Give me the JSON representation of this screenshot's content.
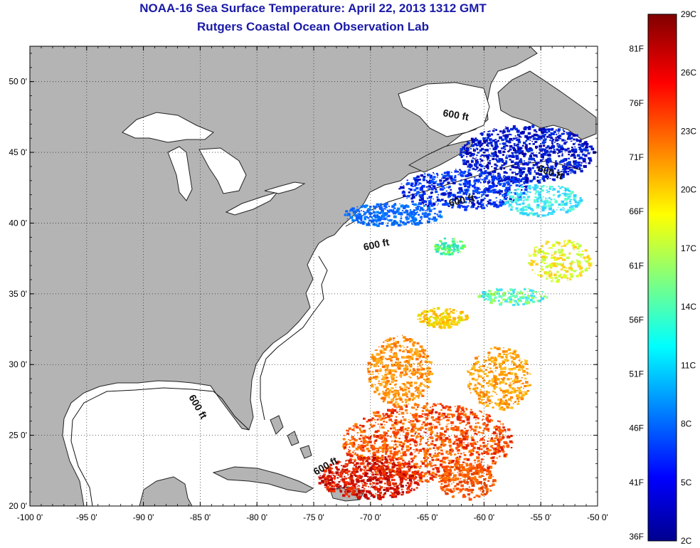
{
  "header": {
    "title": "NOAA-16 Sea Surface Temperature:  April 22, 2013 1312 GMT",
    "subtitle": "Rutgers Coastal Ocean Observation Lab"
  },
  "map": {
    "lon_range": [
      -100,
      -50
    ],
    "lat_range": [
      20,
      52.5
    ],
    "lon_ticks": [
      "-100 0'",
      "-95 0'",
      "-90 0'",
      "-85 0'",
      "-80 0'",
      "-75 0'",
      "-70 0'",
      "-65 0'",
      "-60 0'",
      "-55 0'",
      "-50 0'"
    ],
    "lat_ticks": [
      "20 0'",
      "25 0'",
      "30 0'",
      "35 0'",
      "40 0'",
      "45 0'",
      "50 0'"
    ],
    "land_color": "#b4b4b4",
    "ocean_color": "#ffffff",
    "gridlines": true,
    "contour_labels": [
      "600 ft",
      "600 ft",
      "600 ft",
      "600 ft",
      "600 ft",
      "600 ft"
    ]
  },
  "colorbar": {
    "celsius_labels": [
      "29C",
      "26C",
      "23C",
      "20C",
      "17C",
      "14C",
      "11C",
      "8C",
      "5C",
      "2C"
    ],
    "fahrenheit_labels": [
      "81F",
      "76F",
      "71F",
      "66F",
      "61F",
      "56F",
      "51F",
      "46F",
      "41F",
      "36F"
    ],
    "range_c": [
      2,
      29
    ]
  }
}
